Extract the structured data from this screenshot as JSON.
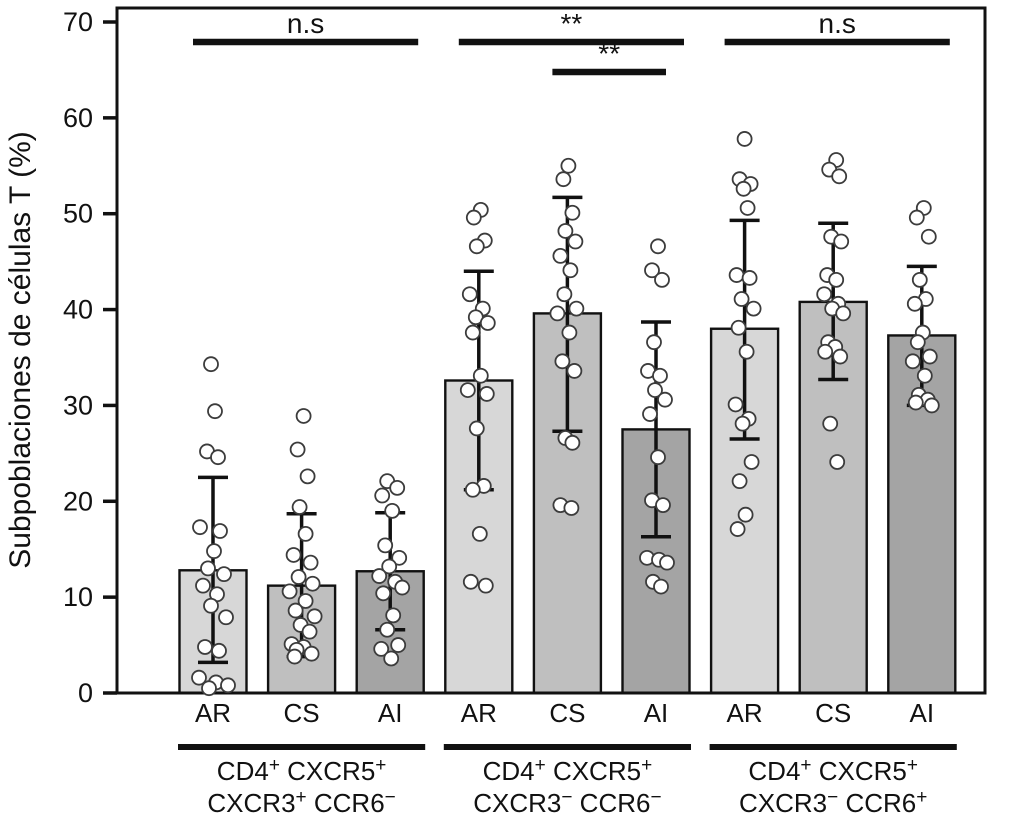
{
  "chart_data": {
    "type": "bar",
    "title": "",
    "ylabel": "Subpoblaciones de células T (%)",
    "ylim": [
      0,
      70
    ],
    "yticks": [
      0,
      10,
      20,
      30,
      40,
      50,
      60,
      70
    ],
    "bar_conditions": [
      "AR",
      "CS",
      "AI"
    ],
    "bar_colors": [
      "#d7d7d7",
      "#bfbfbf",
      "#a4a4a4"
    ],
    "point_style": {
      "fill": "#ffffff",
      "stroke": "#3c3c3c"
    },
    "groups": [
      {
        "label_line1": [
          [
            "CD4",
            "+"
          ],
          [
            " CXCR5",
            "+"
          ]
        ],
        "label_line2": [
          [
            "CXCR3",
            "+"
          ],
          [
            " CCR6",
            "−"
          ]
        ],
        "bars": [
          {
            "condition": "AR",
            "mean": 12.8,
            "err_low": 3.2,
            "err_high": 22.5,
            "points": [
              [
                34.3,
                -2
              ],
              [
                29.4,
                2
              ],
              [
                25.2,
                -6
              ],
              [
                24.6,
                5
              ],
              [
                17.3,
                -13
              ],
              [
                16.9,
                7
              ],
              [
                14.8,
                1
              ],
              [
                13.0,
                -5
              ],
              [
                12.4,
                11
              ],
              [
                11.2,
                -10
              ],
              [
                10.3,
                4
              ],
              [
                9.1,
                -2
              ],
              [
                7.9,
                13
              ],
              [
                4.8,
                -8
              ],
              [
                4.4,
                6
              ],
              [
                1.6,
                -14
              ],
              [
                1.1,
                3
              ],
              [
                0.8,
                15
              ],
              [
                0.5,
                -4
              ]
            ]
          },
          {
            "condition": "CS",
            "mean": 11.2,
            "err_low": 3.8,
            "err_high": 18.7,
            "points": [
              [
                28.9,
                2
              ],
              [
                25.4,
                -4
              ],
              [
                22.6,
                6
              ],
              [
                19.4,
                -2
              ],
              [
                16.6,
                4
              ],
              [
                14.4,
                -8
              ],
              [
                13.6,
                9
              ],
              [
                12.1,
                -3
              ],
              [
                11.4,
                11
              ],
              [
                10.6,
                -12
              ],
              [
                9.6,
                4
              ],
              [
                8.6,
                -6
              ],
              [
                8.0,
                13
              ],
              [
                7.1,
                -1
              ],
              [
                6.4,
                8
              ],
              [
                5.1,
                -10
              ],
              [
                4.8,
                2
              ],
              [
                4.5,
                -5
              ],
              [
                4.1,
                10
              ],
              [
                3.8,
                -7
              ]
            ]
          },
          {
            "condition": "AI",
            "mean": 12.7,
            "err_low": 6.6,
            "err_high": 18.8,
            "points": [
              [
                22.1,
                -3
              ],
              [
                21.4,
                7
              ],
              [
                20.6,
                -8
              ],
              [
                19.0,
                2
              ],
              [
                15.4,
                -5
              ],
              [
                14.1,
                9
              ],
              [
                13.2,
                -1
              ],
              [
                12.2,
                -11
              ],
              [
                11.6,
                5
              ],
              [
                11.0,
                12
              ],
              [
                10.4,
                -7
              ],
              [
                8.1,
                3
              ],
              [
                6.6,
                -3
              ],
              [
                5.0,
                8
              ],
              [
                4.6,
                -9
              ],
              [
                3.6,
                1
              ]
            ]
          }
        ]
      },
      {
        "label_line1": [
          [
            "CD4",
            "+"
          ],
          [
            " CXCR5",
            "+"
          ]
        ],
        "label_line2": [
          [
            "CXCR3",
            "−"
          ],
          [
            " CCR6",
            "−"
          ]
        ],
        "bars": [
          {
            "condition": "AR",
            "mean": 32.6,
            "err_low": 21.2,
            "err_high": 44.0,
            "points": [
              [
                50.4,
                2
              ],
              [
                49.6,
                -5
              ],
              [
                47.2,
                6
              ],
              [
                46.6,
                -2
              ],
              [
                41.6,
                -9
              ],
              [
                40.1,
                4
              ],
              [
                39.2,
                -3
              ],
              [
                38.6,
                9
              ],
              [
                37.6,
                -6
              ],
              [
                33.1,
                2
              ],
              [
                31.6,
                -11
              ],
              [
                31.2,
                8
              ],
              [
                27.6,
                -2
              ],
              [
                21.6,
                5
              ],
              [
                21.2,
                -6
              ],
              [
                16.6,
                1
              ],
              [
                11.6,
                -8
              ],
              [
                11.2,
                7
              ]
            ]
          },
          {
            "condition": "CS",
            "mean": 39.6,
            "err_low": 27.3,
            "err_high": 51.7,
            "points": [
              [
                55.0,
                1
              ],
              [
                53.6,
                -4
              ],
              [
                50.1,
                5
              ],
              [
                48.2,
                -2
              ],
              [
                47.1,
                8
              ],
              [
                45.6,
                -7
              ],
              [
                44.1,
                3
              ],
              [
                41.6,
                -3
              ],
              [
                40.1,
                9
              ],
              [
                39.6,
                -10
              ],
              [
                37.6,
                2
              ],
              [
                34.6,
                -5
              ],
              [
                33.6,
                7
              ],
              [
                26.6,
                -2
              ],
              [
                26.1,
                5
              ],
              [
                19.6,
                -7
              ],
              [
                19.3,
                4
              ]
            ]
          },
          {
            "condition": "AI",
            "mean": 27.5,
            "err_low": 16.3,
            "err_high": 38.7,
            "points": [
              [
                46.6,
                2
              ],
              [
                44.1,
                -4
              ],
              [
                43.1,
                6
              ],
              [
                36.6,
                -2
              ],
              [
                33.6,
                -8
              ],
              [
                33.1,
                4
              ],
              [
                31.6,
                -1
              ],
              [
                30.6,
                9
              ],
              [
                29.1,
                -6
              ],
              [
                24.6,
                2
              ],
              [
                20.1,
                -4
              ],
              [
                19.6,
                7
              ],
              [
                14.1,
                -9
              ],
              [
                13.9,
                3
              ],
              [
                13.6,
                11
              ],
              [
                11.6,
                -3
              ],
              [
                11.1,
                5
              ]
            ]
          }
        ]
      },
      {
        "label_line1": [
          [
            "CD4",
            "+"
          ],
          [
            " CXCR5",
            "+"
          ]
        ],
        "label_line2": [
          [
            "CXCR3",
            "−"
          ],
          [
            " CCR6",
            "+"
          ]
        ],
        "bars": [
          {
            "condition": "AR",
            "mean": 38.0,
            "err_low": 26.5,
            "err_high": 49.3,
            "points": [
              [
                57.8,
                0
              ],
              [
                53.6,
                -5
              ],
              [
                53.1,
                6
              ],
              [
                52.6,
                -1
              ],
              [
                50.6,
                3
              ],
              [
                43.6,
                -8
              ],
              [
                43.3,
                5
              ],
              [
                41.1,
                -3
              ],
              [
                40.1,
                9
              ],
              [
                38.1,
                -6
              ],
              [
                35.6,
                2
              ],
              [
                30.1,
                -9
              ],
              [
                28.6,
                4
              ],
              [
                28.1,
                -2
              ],
              [
                24.1,
                7
              ],
              [
                22.1,
                -5
              ],
              [
                18.6,
                1
              ],
              [
                17.1,
                -7
              ]
            ]
          },
          {
            "condition": "CS",
            "mean": 40.8,
            "err_low": 32.7,
            "err_high": 49.0,
            "points": [
              [
                55.6,
                3
              ],
              [
                54.6,
                -4
              ],
              [
                53.9,
                6
              ],
              [
                47.6,
                -2
              ],
              [
                47.1,
                8
              ],
              [
                43.6,
                -6
              ],
              [
                43.1,
                3
              ],
              [
                41.6,
                -9
              ],
              [
                40.6,
                5
              ],
              [
                40.1,
                -1
              ],
              [
                39.6,
                10
              ],
              [
                36.6,
                -5
              ],
              [
                36.1,
                2
              ],
              [
                35.6,
                -8
              ],
              [
                35.1,
                7
              ],
              [
                28.1,
                -3
              ],
              [
                24.1,
                4
              ]
            ]
          },
          {
            "condition": "AI",
            "mean": 37.3,
            "err_low": 30.0,
            "err_high": 44.5,
            "points": [
              [
                50.6,
                2
              ],
              [
                49.6,
                -5
              ],
              [
                47.6,
                7
              ],
              [
                43.1,
                -2
              ],
              [
                41.1,
                4
              ],
              [
                40.6,
                -7
              ],
              [
                37.6,
                1
              ],
              [
                36.6,
                -4
              ],
              [
                35.1,
                8
              ],
              [
                34.6,
                -9
              ],
              [
                33.1,
                3
              ],
              [
                31.1,
                -3
              ],
              [
                30.6,
                6
              ],
              [
                30.3,
                -6
              ],
              [
                30.0,
                10
              ]
            ]
          }
        ]
      }
    ],
    "significance": [
      {
        "label": "n.s",
        "group": 0,
        "from": 0,
        "to": 2,
        "level": 0
      },
      {
        "label": "**",
        "group": 1,
        "from": 0,
        "to": 2,
        "level": 0
      },
      {
        "label": "**",
        "group": 1,
        "from": 1,
        "to": 2,
        "level": 1
      },
      {
        "label": "n.s",
        "group": 2,
        "from": 0,
        "to": 2,
        "level": 0
      }
    ]
  }
}
